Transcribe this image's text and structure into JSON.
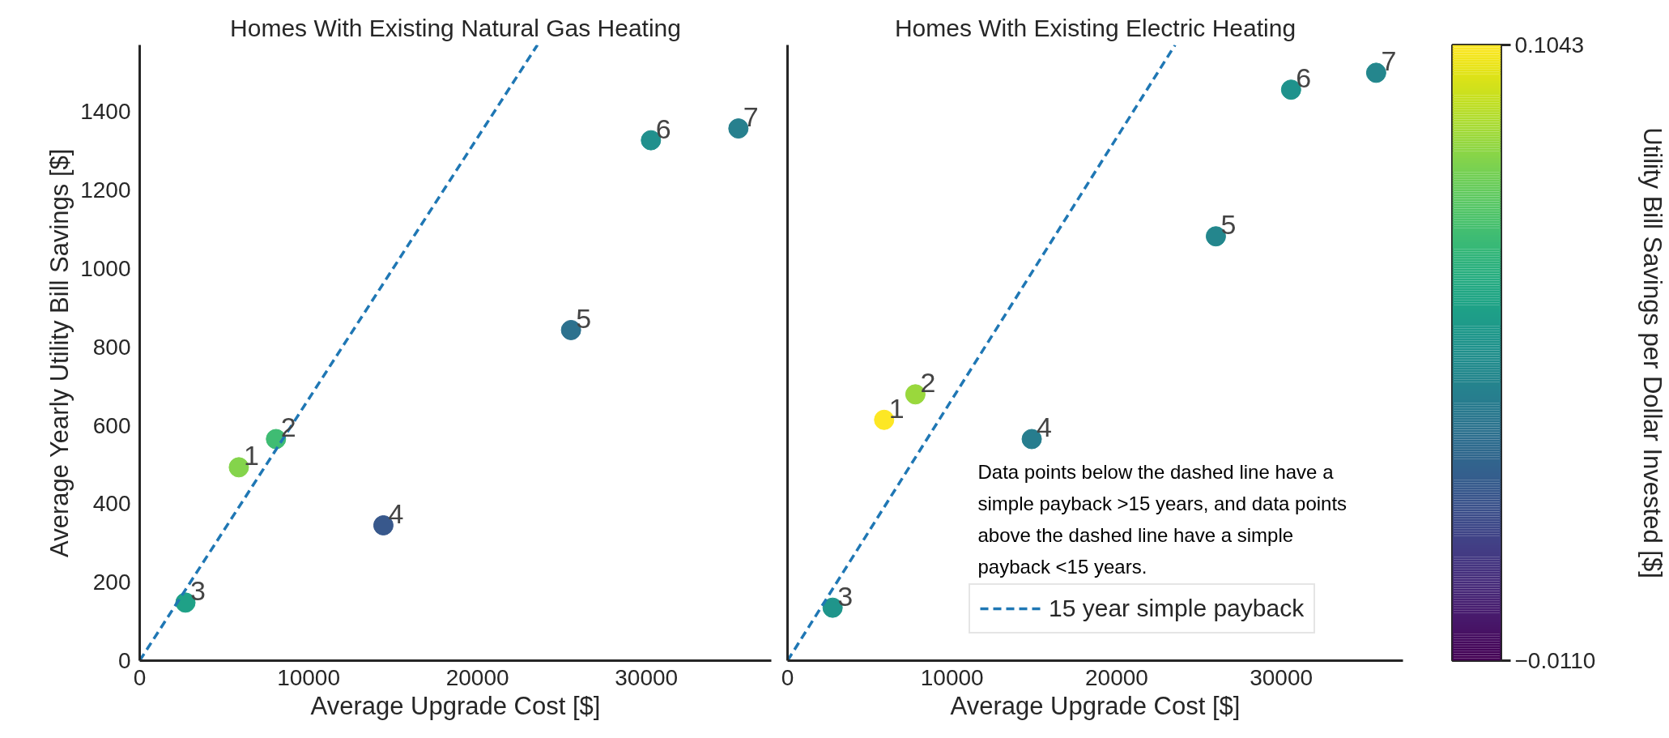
{
  "chart_data": [
    {
      "type": "scatter",
      "title": "Homes With Existing Natural Gas Heating",
      "xlabel": "Average Upgrade Cost [$]",
      "ylabel": "Average Yearly Utility Bill Savings [$]",
      "series": [
        {
          "x": [
            5870,
            8070,
            2710,
            14430,
            25540,
            30270,
            35450
          ],
          "values": [
            493,
            565,
            148,
            345,
            843,
            1327,
            1357
          ],
          "colors": [
            "#84d44b",
            "#3fbc73",
            "#1fa187",
            "#38588c",
            "#2c718e",
            "#21908d",
            "#27808e"
          ]
        },
        {
          "type": "line",
          "color": "#1f77b4",
          "line_style": "dashed",
          "marker": "none",
          "x": [
            0,
            23550
          ],
          "values": [
            0,
            1570
          ]
        }
      ],
      "xlim": [
        0,
        37400
      ],
      "xticks": [
        0,
        10000,
        20000,
        30000
      ],
      "ylim": [
        0,
        1570
      ],
      "yticks": [
        0,
        200,
        400,
        600,
        800,
        1000,
        1200,
        1400
      ],
      "grid": false,
      "legend": false,
      "marker": "circle",
      "annotations": [
        {
          "text": "1",
          "x": 5870,
          "y": 493
        },
        {
          "text": "2",
          "x": 8070,
          "y": 565
        },
        {
          "text": "3",
          "x": 2710,
          "y": 148
        },
        {
          "text": "4",
          "x": 14430,
          "y": 345
        },
        {
          "text": "5",
          "x": 25540,
          "y": 843
        },
        {
          "text": "6",
          "x": 30270,
          "y": 1327
        },
        {
          "text": "7",
          "x": 35450,
          "y": 1357
        }
      ]
    },
    {
      "type": "scatter",
      "title": "Homes With Existing Electric Heating",
      "xlabel": "Average Upgrade Cost [$]",
      "clabel": "Utility Bill Savings per Dollar Invested [$]",
      "series": [
        {
          "x": [
            5870,
            7770,
            2740,
            14840,
            26030,
            30600,
            35770
          ],
          "values": [
            614,
            679,
            135,
            565,
            1082,
            1456,
            1499
          ],
          "cvalues": [
            0.1043,
            0.087,
            0.049,
            0.038,
            0.042,
            0.048,
            0.042
          ],
          "colors": [
            "#fde725",
            "#95d840",
            "#1f988b",
            "#27808e",
            "#228b8d",
            "#1f968b",
            "#228b8d"
          ]
        },
        {
          "type": "line",
          "name": "15 year simple payback",
          "color": "#1f77b4",
          "line_style": "dashed",
          "marker": "none",
          "x": [
            0,
            23550
          ],
          "values": [
            0,
            1570
          ]
        }
      ],
      "xlim": [
        0,
        37400
      ],
      "xticks": [
        0,
        10000,
        20000,
        30000
      ],
      "ylim": [
        0,
        1570
      ],
      "yticks": [
        0,
        200,
        400,
        600,
        800,
        1000,
        1200,
        1400
      ],
      "clim": [
        -0.011,
        0.1043
      ],
      "cticks": [
        {
          "value": 0.1043,
          "label": "0.1043"
        },
        {
          "value": -0.011,
          "label": "−0.0110"
        }
      ],
      "grid": false,
      "legend": "bottom right",
      "marker": "circle",
      "tick_labels": "x",
      "annotations": [
        {
          "text": "1",
          "x": 5870,
          "y": 614
        },
        {
          "text": "2",
          "x": 7770,
          "y": 679
        },
        {
          "text": "3",
          "x": 2740,
          "y": 135
        },
        {
          "text": "4",
          "x": 14840,
          "y": 565
        },
        {
          "text": "5",
          "x": 26030,
          "y": 1082
        },
        {
          "text": "6",
          "x": 30600,
          "y": 1456
        },
        {
          "text": "7",
          "x": 35770,
          "y": 1499
        },
        "Data points below the dashed line have a simple payback >15 years, and data points above the dashed line have a simple payback <15 years."
      ]
    }
  ]
}
